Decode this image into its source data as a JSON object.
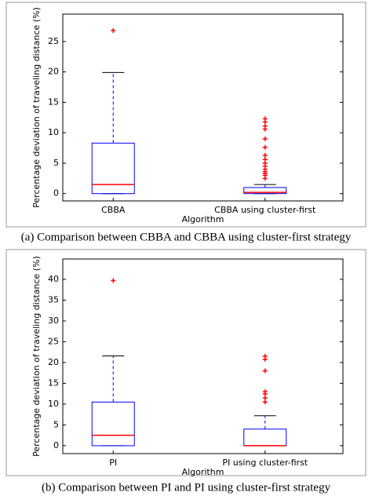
{
  "chart_data": [
    {
      "type": "box",
      "caption": "(a) Comparison between CBBA and CBBA using cluster-first strategy",
      "xlabel": "Algorithm",
      "ylabel": "Percentage deviation of traveling distance (%)",
      "categories": [
        "CBBA",
        "CBBA using cluster-first"
      ],
      "boxes": [
        {
          "whisker_low": 0,
          "q1": 0,
          "median": 1.5,
          "q3": 8.3,
          "whisker_high": 19.9,
          "outliers": [
            26.8
          ]
        },
        {
          "whisker_low": 0,
          "q1": 0,
          "median": 0.2,
          "q3": 1,
          "whisker_high": 1.5,
          "outliers": [
            2.5,
            3,
            3.3,
            3.6,
            4,
            4.5,
            5,
            5.6,
            6.3,
            7.6,
            9,
            10.6,
            11.1,
            11.8,
            12.3
          ]
        }
      ],
      "box_color": "#0000ff",
      "median_color": "#ff0000",
      "outlier_color": "#ff0000",
      "ylim": [
        -1.2,
        29.5
      ],
      "yticks": [
        0,
        5,
        10,
        15,
        20,
        25
      ]
    },
    {
      "type": "box",
      "caption": "(b) Comparison between PI and PI using cluster-first strategy",
      "xlabel": "Algorithm",
      "ylabel": "Percentage deviation of traveling distance (%)",
      "categories": [
        "PI",
        "PI using cluster-first"
      ],
      "boxes": [
        {
          "whisker_low": 0,
          "q1": 0,
          "median": 2.5,
          "q3": 10.5,
          "whisker_high": 21.6,
          "outliers": [
            39.7
          ]
        },
        {
          "whisker_low": 0,
          "q1": 0,
          "median": 0,
          "q3": 4,
          "whisker_high": 7.2,
          "outliers": [
            10.5,
            11.5,
            12.5,
            13,
            18,
            20.8,
            21.5
          ]
        }
      ],
      "box_color": "#0000ff",
      "median_color": "#ff0000",
      "outlier_color": "#ff0000",
      "ylim": [
        -1.9,
        44.9
      ],
      "yticks": [
        0,
        5,
        10,
        15,
        20,
        25,
        30,
        35,
        40
      ]
    }
  ]
}
